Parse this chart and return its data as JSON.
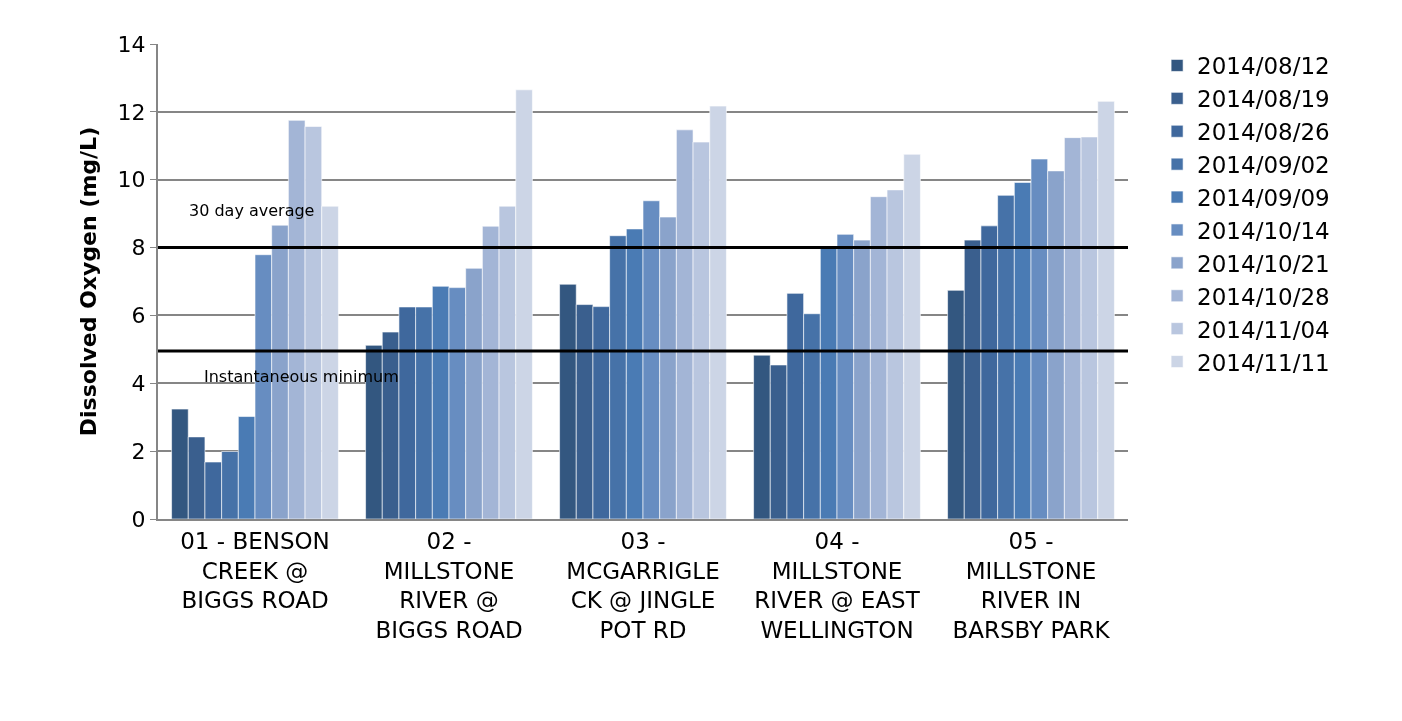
{
  "chart_data": {
    "type": "bar",
    "ylabel": "Dissolved Oxygen (mg/L)",
    "categories": [
      "01 - BENSON\nCREEK @\nBIGGS ROAD",
      "02 -\nMILLSTONE\nRIVER @\nBIGGS ROAD",
      "03 -\nMCGARRIGLE\nCK @ JINGLE\nPOT RD",
      "04 -\nMILLSTONE\nRIVER @ EAST\nWELLINGTON",
      "05 -\nMILLSTONE\nRIVER IN\nBARSBY PARK"
    ],
    "series": [
      {
        "name": "2014/08/12",
        "color": "#335780",
        "values": [
          3.24,
          5.12,
          6.92,
          4.83,
          6.74
        ]
      },
      {
        "name": "2014/08/19",
        "color": "#3a5f8e",
        "values": [
          2.42,
          5.51,
          6.32,
          4.54,
          8.22
        ]
      },
      {
        "name": "2014/08/26",
        "color": "#3f689d",
        "values": [
          1.68,
          6.25,
          6.26,
          6.65,
          8.64
        ]
      },
      {
        "name": "2014/09/02",
        "color": "#4672a8",
        "values": [
          1.99,
          6.25,
          8.35,
          6.05,
          9.54
        ]
      },
      {
        "name": "2014/09/09",
        "color": "#4a7bb4",
        "values": [
          3.02,
          6.86,
          8.55,
          8.04,
          9.92
        ]
      },
      {
        "name": "2014/10/14",
        "color": "#678dc1",
        "values": [
          7.79,
          6.82,
          9.38,
          8.39,
          10.61
        ]
      },
      {
        "name": "2014/10/21",
        "color": "#8aa3cb",
        "values": [
          8.66,
          7.39,
          8.9,
          8.22,
          10.26
        ]
      },
      {
        "name": "2014/10/28",
        "color": "#a3b5d6",
        "values": [
          11.75,
          8.63,
          11.47,
          9.5,
          11.24
        ]
      },
      {
        "name": "2014/11/04",
        "color": "#b9c6df",
        "values": [
          11.57,
          9.22,
          11.11,
          9.7,
          11.26
        ]
      },
      {
        "name": "2014/11/11",
        "color": "#ccd5e6",
        "values": [
          9.22,
          12.65,
          12.17,
          10.75,
          12.31
        ]
      }
    ],
    "ylim": [
      0,
      14
    ],
    "yticks": [
      0,
      2,
      4,
      6,
      8,
      10,
      12,
      14
    ],
    "grid": "y",
    "legend": "right",
    "ref_lines": [
      {
        "axis": "y",
        "value": 8,
        "label": "30 day average",
        "color": "#000000"
      },
      {
        "axis": "y",
        "value": 4.95,
        "label": "Instantaneous minimum",
        "color": "#000000"
      }
    ]
  }
}
